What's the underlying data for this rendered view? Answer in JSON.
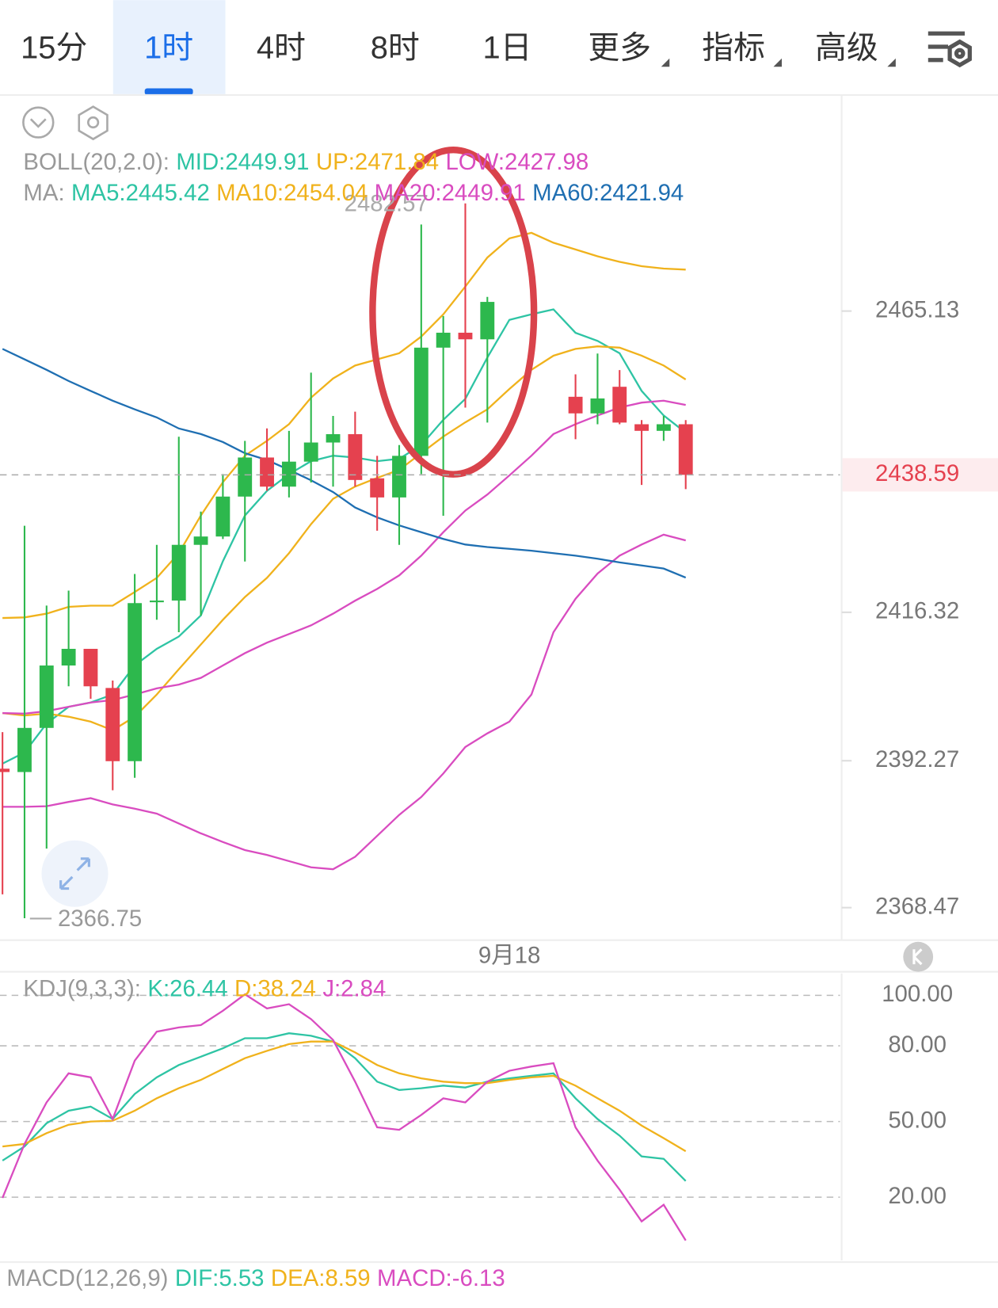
{
  "tabs": [
    "15分",
    "1时",
    "4时",
    "8时",
    "1日",
    "更多",
    "指标",
    "高级"
  ],
  "active_tab": 1,
  "chart_data": [
    {
      "type": "candlestick",
      "categories": [
        null,
        null,
        null,
        null,
        null,
        null,
        null,
        null,
        null,
        null,
        null,
        null,
        null,
        null,
        null,
        null,
        null,
        null,
        null,
        null,
        null,
        null,
        null,
        "9月18",
        null,
        null,
        null,
        null,
        null,
        null,
        null,
        null
      ],
      "open": [
        2390.98,
        2390.44,
        2397.59,
        2407.7,
        2410.4,
        2404.06,
        2392.2,
        2417.95,
        2418.22,
        2427.25,
        2428.6,
        2435.07,
        2441.4,
        2436.68,
        2440.73,
        2443.83,
        2445.18,
        2438.03,
        2434.93,
        2441.67,
        2459.2,
        2461.62,
        2460.55,
        null,
        null,
        null,
        2451.24,
        2448.55,
        2452.86,
        2446.79,
        2445.72,
        2446.79
      ],
      "high": [
        2396.91,
        2430.35,
        2417.41,
        2419.83,
        2410.4,
        2405.27,
        2422.53,
        2427.25,
        2444.77,
        2432.64,
        2438.71,
        2444.1,
        2446.12,
        2445.72,
        2455.15,
        2448.14,
        2448.82,
        2441.67,
        2443.42,
        2479.15,
        2464.32,
        2482.57,
        2467.42,
        null,
        null,
        null,
        2454.88,
        2458.25,
        2455.56,
        2447.47,
        2448.14,
        2447.47
      ],
      "low": [
        2370.63,
        2366.75,
        2378.04,
        2404.33,
        2402.31,
        2387.48,
        2389.5,
        2415.11,
        2413.09,
        2415.79,
        2428.19,
        2424.55,
        2436.01,
        2434.93,
        2437.36,
        2436.68,
        2436.68,
        2429.54,
        2427.25,
        2438.71,
        2431.97,
        2449.49,
        2447.06,
        null,
        null,
        null,
        2444.37,
        2446.79,
        2446.79,
        2436.95,
        2444.1,
        2436.28
      ],
      "close": [
        2390.44,
        2397.59,
        2407.7,
        2410.4,
        2404.33,
        2392.2,
        2417.81,
        2418.22,
        2427.25,
        2428.6,
        2435.07,
        2441.4,
        2436.68,
        2440.73,
        2443.83,
        2445.18,
        2437.76,
        2434.93,
        2441.67,
        2459.2,
        2461.62,
        2460.55,
        2466.61,
        null,
        null,
        null,
        2448.55,
        2450.97,
        2447.06,
        2445.72,
        2446.79,
        2438.59
      ],
      "up_color": "#2db84d",
      "down_color": "#e5414f",
      "ylim": [
        2363.2,
        2500.0
      ],
      "yticks": [
        2368.47,
        2392.27,
        2416.32,
        2465.13
      ],
      "overlays": [
        {
          "title": "BOLL(20,2.0):",
          "series": [
            {
              "name": "MID:2449.91",
              "color": "#2ec4a4"
            },
            {
              "name": "UP:2471.84",
              "color": "#f0b21c",
              "values": [
                2415.4,
                2415.5,
                2416.1,
                2417.2,
                2417.4,
                2417.4,
                2419.6,
                2421.9,
                2425.9,
                2432.0,
                2437.4,
                2441.7,
                2444.1,
                2446.8,
                2451.1,
                2454.2,
                2456.3,
                2457.3,
                2458.3,
                2461.0,
                2464.6,
                2469.1,
                2473.8,
                2476.9,
                2477.8,
                2476.2,
                2475.1,
                2474.0,
                2473.1,
                2472.4,
                2472.0,
                2471.84
              ]
            },
            {
              "name": "LOW:2427.98",
              "color": "#d94cc0",
              "values": [
                2384.8,
                2384.8,
                2384.9,
                2385.6,
                2386.2,
                2385.2,
                2384.5,
                2383.7,
                2382.1,
                2380.5,
                2379.1,
                2377.8,
                2377.0,
                2376.0,
                2375.0,
                2374.7,
                2376.7,
                2380.1,
                2383.5,
                2386.4,
                2390.2,
                2394.5,
                2396.7,
                2398.6,
                2403.0,
                2413.1,
                2418.5,
                2422.6,
                2425.5,
                2427.3,
                2428.9,
                2427.98
              ]
            }
          ]
        },
        {
          "title": "MA:",
          "series": [
            {
              "name": "MA5:2445.42",
              "color": "#2ec4a4",
              "values": [
                2391.8,
                2393.6,
                2398.3,
                2401.0,
                2401.7,
                2403.0,
                2407.7,
                2410.4,
                2412.4,
                2415.8,
                2424.6,
                2432.0,
                2436.0,
                2438.7,
                2440.8,
                2441.7,
                2441.4,
                2440.8,
                2441.2,
                2443.4,
                2447.5,
                2450.9,
                2457.6,
                2463.7,
                2464.6,
                2465.4,
                2461.6,
                2460.3,
                2458.3,
                2452.2,
                2448.2,
                2445.42
              ]
            },
            {
              "name": "MA10:2454.04",
              "color": "#f0b21c",
              "values": [
                2400.0,
                2399.6,
                2399.9,
                2399.4,
                2398.6,
                2397.2,
                2399.4,
                2403.0,
                2407.1,
                2411.1,
                2415.1,
                2418.8,
                2421.9,
                2425.9,
                2430.6,
                2434.7,
                2436.7,
                2438.1,
                2439.4,
                2442.1,
                2444.8,
                2447.1,
                2449.2,
                2452.5,
                2455.6,
                2457.9,
                2459.0,
                2459.4,
                2459.2,
                2457.9,
                2456.3,
                2454.04
              ]
            },
            {
              "name": "MA20:2449.91",
              "color": "#d94cc0",
              "values": [
                2400.0,
                2399.9,
                2400.3,
                2401.0,
                2401.7,
                2402.1,
                2403.0,
                2404.0,
                2404.6,
                2405.7,
                2407.7,
                2409.7,
                2411.4,
                2412.8,
                2414.2,
                2416.1,
                2418.2,
                2420.1,
                2422.3,
                2425.5,
                2429.3,
                2432.8,
                2435.4,
                2438.5,
                2441.7,
                2445.2,
                2446.8,
                2448.2,
                2449.5,
                2450.3,
                2450.6,
                2449.91
              ]
            },
            {
              "name": "MA60:2421.94",
              "color": "#1f6fb2",
              "values": [
                2459.0,
                2457.3,
                2455.6,
                2453.8,
                2452.2,
                2450.6,
                2449.2,
                2447.9,
                2446.1,
                2445.2,
                2443.9,
                2442.1,
                2441.0,
                2439.4,
                2437.7,
                2435.8,
                2433.3,
                2431.7,
                2430.4,
                2429.3,
                2428.2,
                2427.3,
                2426.9,
                2426.6,
                2426.3,
                2425.9,
                2425.5,
                2425.0,
                2424.4,
                2423.9,
                2423.4,
                2421.94
              ]
            }
          ]
        }
      ]
    },
    {
      "type": "line",
      "title": "KDJ(9,3,3):",
      "ylim": [
        -5.06,
        108.69
      ],
      "yticks": [
        {
          "value": 100,
          "label": "100.00"
        },
        {
          "value": 80,
          "label": "80.00"
        },
        {
          "value": 50,
          "label": "50.00"
        },
        {
          "value": 20,
          "label": "20.00"
        }
      ],
      "grid": "dashed",
      "series": [
        {
          "name": "K:26.44",
          "color": "#2ec4a4",
          "values": [
            34.5,
            40.1,
            49.3,
            54.3,
            55.9,
            51.0,
            60.9,
            67.5,
            72.4,
            75.7,
            79.0,
            83.0,
            83.0,
            85.0,
            84.0,
            81.7,
            75.1,
            65.8,
            62.5,
            63.2,
            64.2,
            63.5,
            65.8,
            67.1,
            68.1,
            69.1,
            59.2,
            51.0,
            44.4,
            36.2,
            35.2,
            26.44
          ]
        },
        {
          "name": "D:38.24",
          "color": "#f0b21c",
          "values": [
            40.1,
            41.1,
            45.4,
            48.7,
            50.0,
            50.3,
            54.3,
            59.2,
            63.2,
            66.5,
            70.8,
            75.1,
            78.0,
            80.7,
            81.7,
            81.7,
            77.4,
            72.4,
            69.1,
            67.1,
            65.8,
            65.2,
            65.2,
            66.5,
            67.5,
            68.1,
            64.2,
            59.2,
            54.3,
            48.4,
            43.4,
            38.24
          ]
        },
        {
          "name": "J:2.84",
          "color": "#d94cc0",
          "values": [
            19.7,
            41.1,
            57.6,
            69.1,
            67.5,
            51.0,
            74.1,
            85.6,
            87.3,
            88.2,
            93.9,
            100.4,
            94.8,
            96.5,
            90.6,
            82.3,
            65.8,
            47.7,
            46.7,
            52.6,
            59.2,
            57.6,
            65.8,
            70.1,
            71.8,
            73.1,
            47.7,
            34.5,
            23.0,
            10.4,
            17.0,
            2.84
          ]
        }
      ]
    },
    {
      "type": "line",
      "title": "MACD(12,26,9)",
      "series": [
        {
          "name": "DIF:5.53",
          "color": "#2ec4a4"
        },
        {
          "name": "DEA:8.59",
          "color": "#f0b21c"
        },
        {
          "name": "MACD:-6.13",
          "color": "#d94cc0"
        }
      ]
    }
  ]
}
